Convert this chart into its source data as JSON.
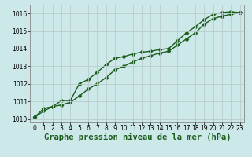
{
  "xlabel": "Graphe pression niveau de la mer (hPa)",
  "background_color": "#cce8e8",
  "grid_color": "#bbcccc",
  "line_color": "#1a5c1a",
  "xlim": [
    -0.5,
    23.5
  ],
  "ylim": [
    1009.8,
    1016.5
  ],
  "yticks": [
    1010,
    1011,
    1012,
    1013,
    1014,
    1015,
    1016
  ],
  "xticks": [
    0,
    1,
    2,
    3,
    4,
    5,
    6,
    7,
    8,
    9,
    10,
    11,
    12,
    13,
    14,
    15,
    16,
    17,
    18,
    19,
    20,
    21,
    22,
    23
  ],
  "series1_x": [
    0,
    1,
    2,
    3,
    4,
    5,
    6,
    7,
    8,
    9,
    10,
    11,
    12,
    13,
    14,
    15,
    16,
    17,
    18,
    19,
    20,
    21,
    22,
    23
  ],
  "series1_y": [
    1010.1,
    1010.45,
    1010.7,
    1010.8,
    1010.95,
    1011.3,
    1011.7,
    1012.0,
    1012.35,
    1012.8,
    1013.0,
    1013.25,
    1013.45,
    1013.6,
    1013.75,
    1013.85,
    1014.2,
    1014.55,
    1014.9,
    1015.4,
    1015.7,
    1015.85,
    1015.95,
    1016.05
  ],
  "series2_x": [
    0,
    1,
    2,
    3,
    4,
    5,
    6,
    7,
    8,
    9,
    10,
    11,
    12,
    13,
    14,
    15,
    16,
    17,
    18,
    19,
    20,
    21,
    22,
    23
  ],
  "series2_y": [
    1010.1,
    1010.6,
    1010.7,
    1011.05,
    1011.05,
    1012.0,
    1012.25,
    1012.65,
    1013.1,
    1013.45,
    1013.55,
    1013.7,
    1013.8,
    1013.85,
    1013.95,
    1014.0,
    1014.45,
    1014.9,
    1015.25,
    1015.65,
    1015.95,
    1016.05,
    1016.1,
    1016.05
  ],
  "marker": "D",
  "marker_size": 2.5,
  "linewidth": 1.0,
  "xlabel_fontsize": 7.5,
  "tick_fontsize": 5.5,
  "spine_color": "#888888"
}
